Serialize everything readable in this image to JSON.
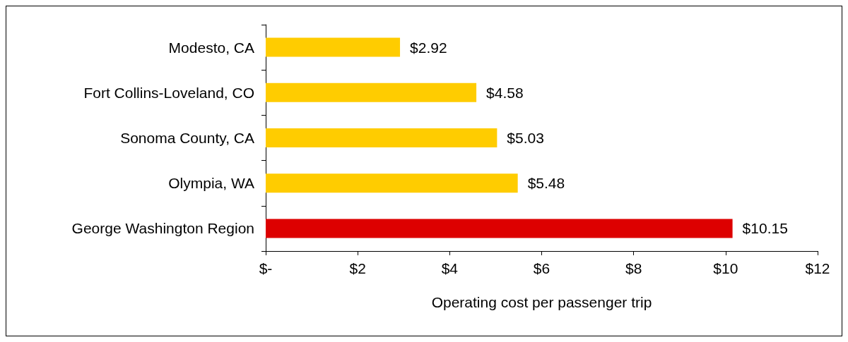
{
  "chart_data": {
    "type": "bar",
    "orientation": "horizontal",
    "xlabel": "Operating cost per passenger trip",
    "categories": [
      "Modesto, CA",
      "Fort Collins-Loveland, CO",
      "Sonoma County, CA",
      "Olympia, WA",
      "George Washington Region"
    ],
    "values": [
      2.92,
      4.58,
      5.03,
      5.48,
      10.15
    ],
    "colors": [
      "#ffcc00",
      "#ffcc00",
      "#ffcc00",
      "#ffcc00",
      "#dd0000"
    ],
    "value_labels": [
      "$2.92",
      "$4.58",
      "$5.03",
      "$5.48",
      "$10.15"
    ],
    "xlim": [
      0,
      12
    ],
    "xticks": [
      {
        "value": 0,
        "label": "$-"
      },
      {
        "value": 2,
        "label": "$2"
      },
      {
        "value": 4,
        "label": "$4"
      },
      {
        "value": 6,
        "label": "$6"
      },
      {
        "value": 8,
        "label": "$8"
      },
      {
        "value": 10,
        "label": "$10"
      },
      {
        "value": 12,
        "label": "$12"
      }
    ],
    "grid": false
  }
}
